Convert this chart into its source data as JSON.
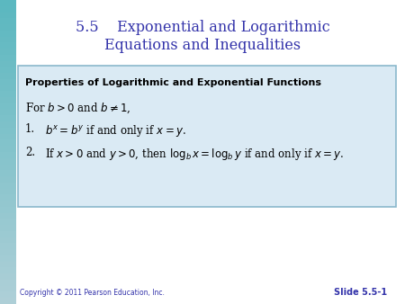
{
  "title_line1": "5.5    Exponential and Logarithmic",
  "title_line2": "Equations and Inequalities",
  "title_color": "#3333aa",
  "bg_color": "#ffffff",
  "left_bar_color": "#5bb8c0",
  "box_bg_color": "#daeaf4",
  "box_border_color": "#8ab8cc",
  "box_bold_text": "Properties of Logarithmic and Exponential Functions",
  "box_line2": "For $b > 0$ and $b \\neq 1$,",
  "box_line3_num": "1.",
  "box_line3_math": "$b^x = b^y$ if and only if $x = y$.",
  "box_line4_num": "2.",
  "box_line4_text": "If $x > 0$ and $y > 0$, then $\\log_b x = \\log_b y$ if and only if $x = y$.",
  "copyright_text": "Copyright © 2011 Pearson Education, Inc.",
  "slide_text": "Slide 5.5-1",
  "copyright_color": "#3333aa",
  "slide_color": "#3333aa"
}
